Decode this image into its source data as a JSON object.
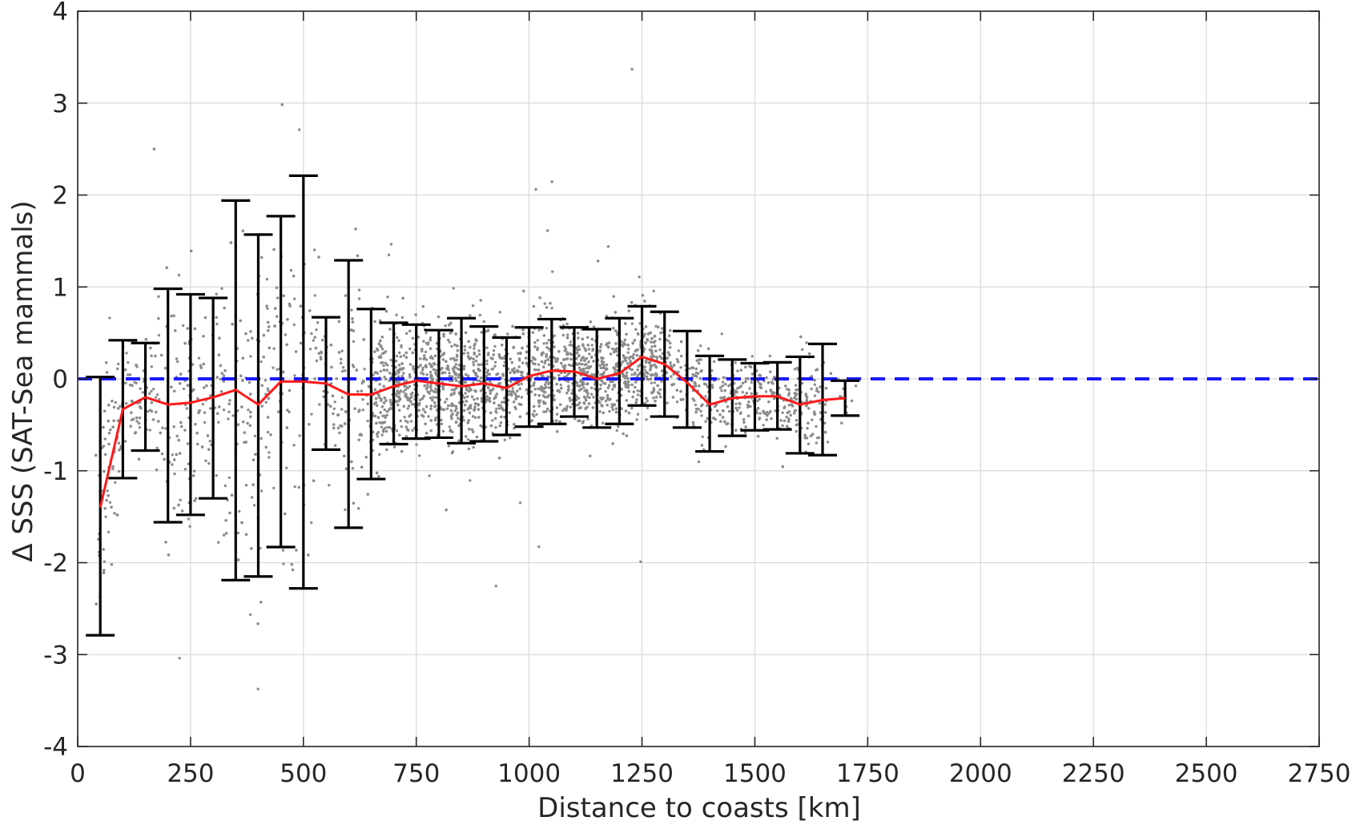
{
  "chart_data": {
    "type": "scatter",
    "xlabel": "Distance to coasts [km]",
    "ylabel": "Δ SSS (SAT-Sea mammals)",
    "xlim": [
      0,
      2750
    ],
    "ylim": [
      -4,
      4
    ],
    "x_ticks": [
      0,
      250,
      500,
      750,
      1000,
      1250,
      1500,
      1750,
      2000,
      2250,
      2500,
      2750
    ],
    "y_ticks": [
      -4,
      -3,
      -2,
      -1,
      0,
      1,
      2,
      3,
      4
    ],
    "grid": true,
    "reference_line": {
      "y": 0,
      "color": "#1a1aff",
      "style": "dashed"
    },
    "series": [
      {
        "type": "errorbar-line",
        "color": "#ff1a1a",
        "bar_color": "#000000",
        "x": [
          50,
          100,
          150,
          200,
          250,
          300,
          350,
          400,
          450,
          500,
          550,
          600,
          650,
          700,
          750,
          800,
          850,
          900,
          950,
          1000,
          1050,
          1100,
          1150,
          1200,
          1250,
          1300,
          1350,
          1400,
          1450,
          1500,
          1550,
          1600,
          1650,
          1700
        ],
        "mean": [
          -1.4,
          -0.33,
          -0.2,
          -0.28,
          -0.26,
          -0.2,
          -0.12,
          -0.28,
          -0.03,
          -0.03,
          -0.05,
          -0.17,
          -0.17,
          -0.08,
          -0.02,
          -0.05,
          -0.08,
          -0.05,
          -0.1,
          0.03,
          0.09,
          0.08,
          0.0,
          0.06,
          0.24,
          0.16,
          -0.04,
          -0.28,
          -0.21,
          -0.19,
          -0.19,
          -0.28,
          -0.23,
          -0.21
        ],
        "upper": [
          0.02,
          0.42,
          0.39,
          0.98,
          0.92,
          0.88,
          1.94,
          1.57,
          1.77,
          2.21,
          0.67,
          1.29,
          0.76,
          0.61,
          0.59,
          0.53,
          0.66,
          0.57,
          0.45,
          0.56,
          0.65,
          0.56,
          0.54,
          0.66,
          0.79,
          0.73,
          0.52,
          0.25,
          0.21,
          0.17,
          0.18,
          0.24,
          0.38,
          -0.02
        ],
        "lower": [
          -2.79,
          -1.08,
          -0.78,
          -1.56,
          -1.48,
          -1.3,
          -2.19,
          -2.15,
          -1.83,
          -2.28,
          -0.77,
          -1.62,
          -1.09,
          -0.71,
          -0.65,
          -0.64,
          -0.7,
          -0.68,
          -0.61,
          -0.52,
          -0.49,
          -0.41,
          -0.53,
          -0.49,
          -0.29,
          -0.41,
          -0.53,
          -0.79,
          -0.62,
          -0.56,
          -0.55,
          -0.81,
          -0.83,
          -0.4
        ]
      }
    ],
    "scatter_points": {
      "color": "#8c8c8c",
      "count": 5000,
      "note_x_range": [
        40,
        1730
      ]
    }
  }
}
